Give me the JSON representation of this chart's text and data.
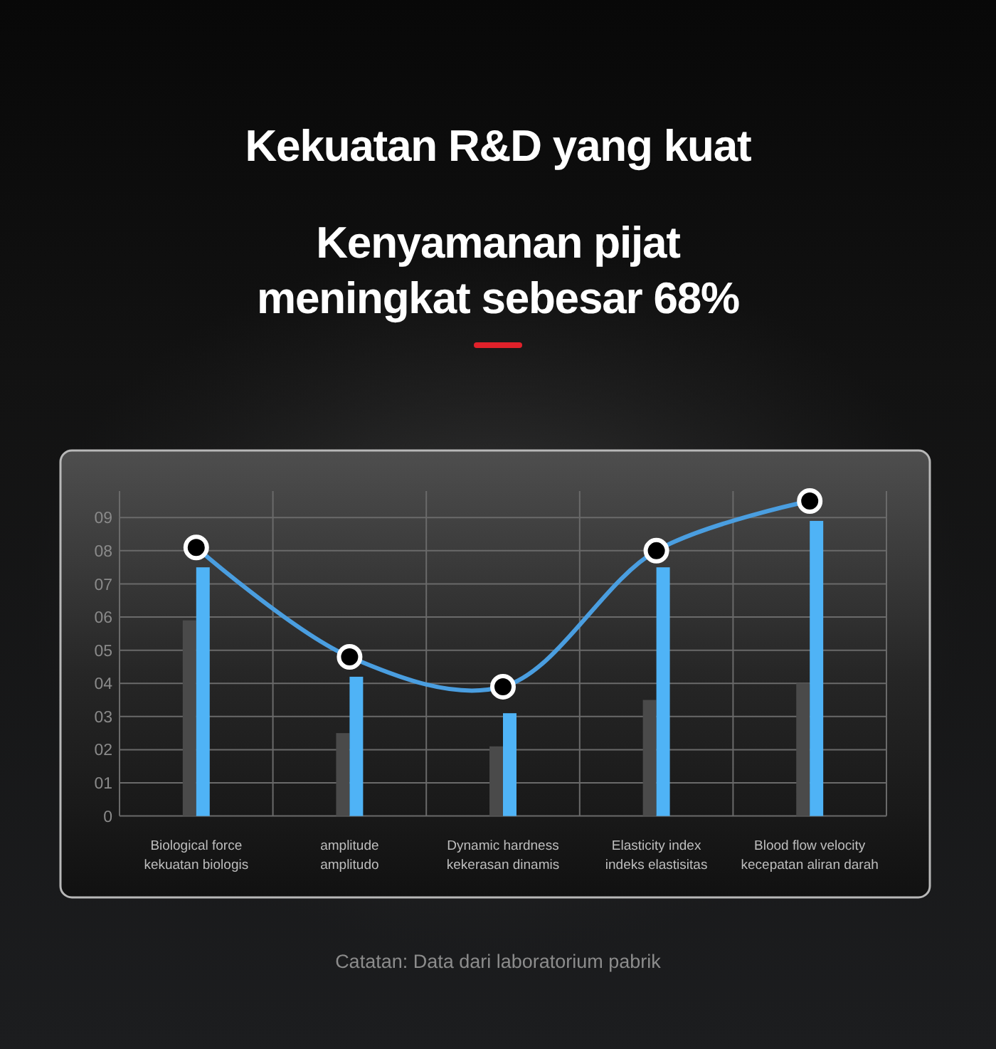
{
  "chart_data": {
    "type": "bar",
    "title": "Kekuatan R&D yang kuat",
    "subtitle": "Kenyamanan pijat\nmeningkat sebesar 68%",
    "categories": [
      "Biological force\nkekuatan biologis",
      "amplitude\namplitudo",
      "Dynamic hardness\nkekerasan dinamis",
      "Elasticity index\nindeks elastisitas",
      "Blood flow velocity\nkecepatan aliran darah"
    ],
    "series": [
      {
        "color": "#4a4a4a",
        "values": [
          5.9,
          2.5,
          2.1,
          3.5,
          4.0
        ]
      },
      {
        "color": "#4fb3f6",
        "values": [
          7.5,
          4.2,
          3.1,
          7.5,
          8.9
        ]
      },
      {
        "type": "line",
        "color": "#4a9ee0",
        "values": [
          8.1,
          4.8,
          3.9,
          8.0,
          9.5
        ]
      }
    ],
    "ylim": [
      0,
      9.8
    ],
    "yticks": [
      0,
      {
        "value": 1,
        "label": "01"
      },
      {
        "value": 2,
        "label": "02"
      },
      {
        "value": 3,
        "label": "03"
      },
      {
        "value": 4,
        "label": "04"
      },
      {
        "value": 5,
        "label": "05"
      },
      {
        "value": 6,
        "label": "06"
      },
      {
        "value": 7,
        "label": "07"
      },
      {
        "value": 8,
        "label": "08"
      },
      {
        "value": 9,
        "label": "09"
      }
    ],
    "grid": true,
    "marker": "circle",
    "annotations": [
      "Catatan: Data dari laboratorium pabrik"
    ]
  }
}
